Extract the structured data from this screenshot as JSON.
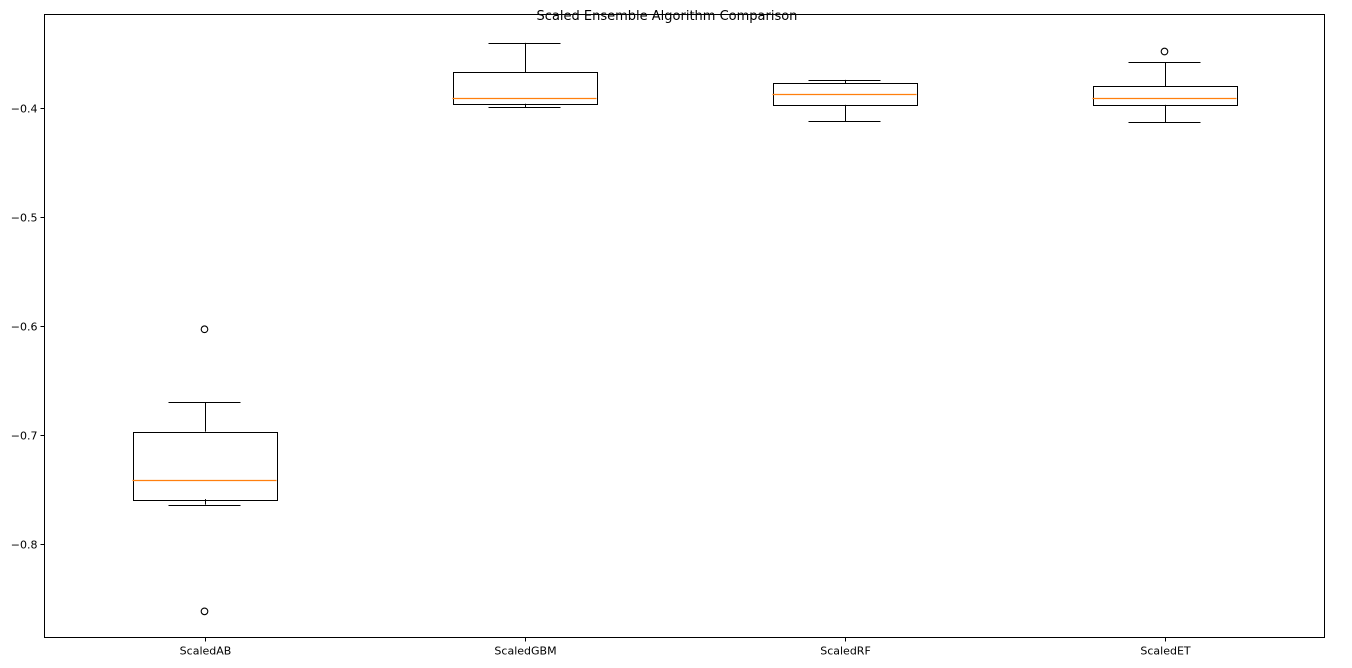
{
  "chart_data": {
    "type": "box",
    "title": "Scaled Ensemble Algorithm Comparison",
    "xlabel": "",
    "ylabel": "",
    "ylim": [
      -0.886,
      -0.314
    ],
    "yticks": [
      -0.8,
      -0.7,
      -0.6,
      -0.5,
      -0.4
    ],
    "ytick_labels": [
      "−0.8",
      "−0.7",
      "−0.6",
      "−0.5",
      "−0.4"
    ],
    "grid": false,
    "legend": "none",
    "categories": [
      "ScaledAB",
      "ScaledGBM",
      "ScaledRF",
      "ScaledET"
    ],
    "boxes": [
      {
        "name": "ScaledAB",
        "whisker_low": -0.764,
        "q1": -0.759,
        "median": -0.741,
        "q3": -0.697,
        "whisker_high": -0.67,
        "fliers": [
          -0.603,
          -0.862
        ]
      },
      {
        "name": "ScaledGBM",
        "whisker_low": -0.399,
        "q1": -0.396,
        "median": -0.391,
        "q3": -0.367,
        "whisker_high": -0.34,
        "fliers": []
      },
      {
        "name": "ScaledRF",
        "whisker_low": -0.412,
        "q1": -0.397,
        "median": -0.387,
        "q3": -0.377,
        "whisker_high": -0.374,
        "fliers": []
      },
      {
        "name": "ScaledET",
        "whisker_low": -0.413,
        "q1": -0.397,
        "median": -0.391,
        "q3": -0.38,
        "whisker_high": -0.358,
        "fliers": [
          -0.348
        ]
      }
    ],
    "colors": {
      "box": "#000000",
      "median": "#ff7f0e",
      "axes": "#000000"
    }
  }
}
